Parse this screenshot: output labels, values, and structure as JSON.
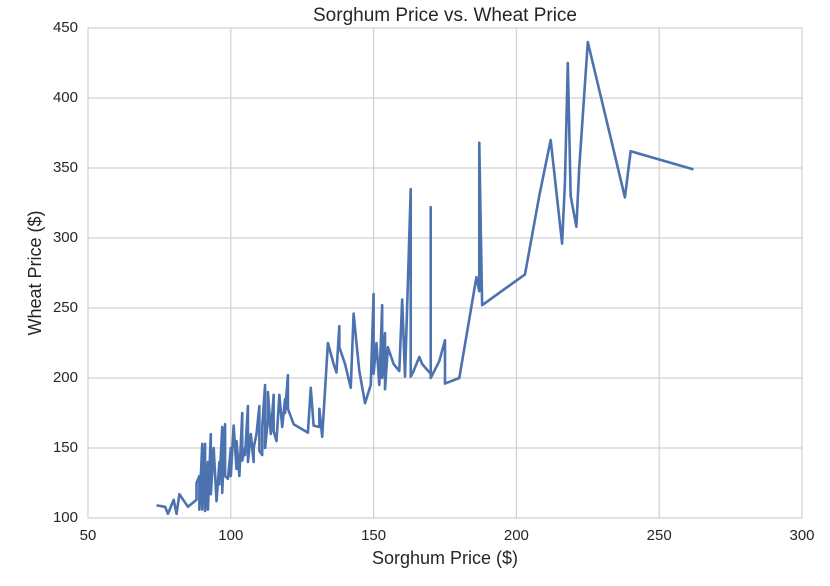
{
  "chart_data": {
    "type": "line",
    "title": "Sorghum Price vs. Wheat Price",
    "x_label": "Sorghum Price ($)",
    "y_label": "Wheat Price ($)",
    "color": "#4c72b0",
    "grid": true,
    "xlim": [
      50,
      300
    ],
    "ylim": [
      100,
      450
    ],
    "xticks": [
      50,
      100,
      150,
      200,
      250,
      300
    ],
    "yticks": [
      100,
      150,
      200,
      250,
      300,
      350,
      400,
      450
    ],
    "x": [
      74,
      77,
      78,
      80,
      81,
      82,
      85,
      88,
      88,
      89,
      89,
      90,
      90,
      91,
      91,
      92,
      92,
      93,
      93,
      94,
      95,
      96,
      96,
      97,
      97,
      98,
      98,
      99,
      100,
      100,
      101,
      102,
      102,
      103,
      104,
      104,
      105,
      105,
      106,
      106,
      107,
      108,
      108,
      109,
      110,
      110,
      111,
      111,
      112,
      112,
      113,
      113,
      114,
      115,
      115,
      116,
      117,
      118,
      119,
      119,
      120,
      120,
      122,
      127,
      128,
      129,
      131,
      131,
      132,
      134,
      136,
      137,
      138,
      138,
      140,
      142,
      143,
      144,
      145,
      147,
      149,
      150,
      150,
      151,
      152,
      153,
      153,
      154,
      154,
      155,
      157,
      159,
      160,
      161,
      163,
      163,
      164,
      165,
      166,
      167,
      170,
      170,
      170,
      173,
      175,
      175,
      180,
      185,
      186,
      187,
      187,
      188,
      203,
      208,
      212,
      216,
      217,
      218,
      219,
      221,
      222,
      225,
      238,
      240,
      262
    ],
    "values": [
      109,
      108,
      103,
      113,
      103,
      117,
      108,
      113,
      125,
      130,
      106,
      153,
      106,
      153,
      105,
      140,
      106,
      160,
      117,
      150,
      112,
      140,
      124,
      165,
      118,
      167,
      130,
      128,
      150,
      130,
      166,
      135,
      155,
      130,
      175,
      141,
      150,
      145,
      180,
      140,
      160,
      140,
      150,
      160,
      180,
      148,
      145,
      165,
      195,
      150,
      170,
      190,
      160,
      188,
      162,
      155,
      188,
      165,
      185,
      175,
      202,
      178,
      167,
      161,
      193,
      166,
      165,
      178,
      158,
      225,
      210,
      204,
      237,
      222,
      210,
      193,
      246,
      225,
      205,
      182,
      195,
      260,
      203,
      225,
      195,
      252,
      200,
      232,
      192,
      222,
      210,
      205,
      256,
      201,
      335,
      201,
      205,
      210,
      215,
      210,
      203,
      322,
      200,
      212,
      227,
      196,
      200,
      260,
      272,
      262,
      368,
      252,
      274,
      330,
      370,
      296,
      340,
      425,
      330,
      308,
      350,
      440,
      329,
      362,
      349
    ]
  }
}
